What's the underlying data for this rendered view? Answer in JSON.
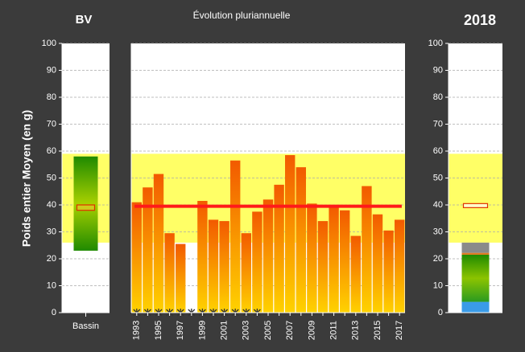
{
  "y_label": "Poids entier Moyen (en g)",
  "chart_data": [
    {
      "type": "range",
      "title": "BV",
      "categories": [
        "Bassin"
      ],
      "band": [
        26,
        59
      ],
      "range": [
        23,
        58
      ],
      "box": [
        38,
        40
      ],
      "ylim": [
        0,
        100
      ],
      "yticks": [
        0,
        10,
        20,
        30,
        40,
        50,
        60,
        70,
        80,
        90,
        100
      ],
      "grid": true
    },
    {
      "type": "bar",
      "title": "Évolution pluriannuelle",
      "categories": [
        "1993",
        null,
        "1995",
        null,
        "1997",
        null,
        "1999",
        null,
        "2001",
        null,
        "2003",
        null,
        "2005",
        null,
        "2007",
        null,
        "2009",
        null,
        "2011",
        null,
        "2013",
        null,
        "2015",
        null,
        "2017"
      ],
      "values": [
        41,
        46.5,
        51.5,
        29.5,
        25.5,
        null,
        41.5,
        34.5,
        34,
        56.5,
        29.5,
        37.5,
        42,
        47.5,
        58.5,
        54,
        40.5,
        34,
        39.5,
        38,
        28.5,
        47,
        36.5,
        30.5,
        34.5
      ],
      "marked": [
        true,
        true,
        true,
        true,
        true,
        true,
        true,
        true,
        true,
        true,
        true,
        true,
        false,
        false,
        false,
        false,
        false,
        false,
        false,
        false,
        false,
        false,
        false,
        false,
        false
      ],
      "reference": 39.5,
      "band": [
        26,
        59
      ],
      "ylim": [
        0,
        100
      ],
      "yticks": [
        0,
        10,
        20,
        30,
        40,
        50,
        60,
        70,
        80,
        90,
        100
      ],
      "grid": true
    },
    {
      "type": "stacked",
      "title": "2018",
      "band": [
        26,
        59
      ],
      "segments": [
        {
          "color": "#3a9be8",
          "value": 4
        },
        {
          "color": "#2f8f10",
          "value": 17.5
        },
        {
          "color": "#e07a20",
          "value": 0.7
        },
        {
          "color": "#8a8a8a",
          "value": 3.8
        }
      ],
      "box": [
        39,
        40.5
      ],
      "ylim": [
        0,
        100
      ],
      "yticks": [
        0,
        10,
        20,
        30,
        40,
        50,
        60,
        70,
        80,
        90,
        100
      ],
      "grid": true
    }
  ]
}
